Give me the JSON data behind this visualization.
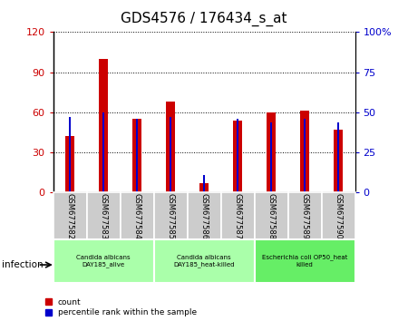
{
  "title": "GDS4576 / 176434_s_at",
  "samples": [
    "GSM677582",
    "GSM677583",
    "GSM677584",
    "GSM677585",
    "GSM677586",
    "GSM677587",
    "GSM677588",
    "GSM677589",
    "GSM677590"
  ],
  "counts": [
    42,
    100,
    55,
    68,
    7,
    54,
    60,
    61,
    47
  ],
  "percentile_ranks": [
    47,
    50,
    46,
    47,
    11,
    46,
    44,
    46,
    44
  ],
  "ylim_left": [
    0,
    120
  ],
  "ylim_right": [
    0,
    100
  ],
  "yticks_left": [
    0,
    30,
    60,
    90,
    120
  ],
  "yticks_right": [
    0,
    25,
    50,
    75,
    100
  ],
  "ytick_labels_left": [
    "0",
    "30",
    "60",
    "90",
    "120"
  ],
  "ytick_labels_right": [
    "0",
    "25",
    "50",
    "75",
    "100%"
  ],
  "bar_color_red": "#cc0000",
  "bar_color_blue": "#0000cc",
  "group_labels": [
    "Candida albicans\nDAY185_alive",
    "Candida albicans\nDAY185_heat-killed",
    "Escherichia coli OP50_heat\nkilled"
  ],
  "group_ranges": [
    [
      0,
      3
    ],
    [
      3,
      6
    ],
    [
      6,
      9
    ]
  ],
  "group_colors": [
    "#aaffaa",
    "#aaffaa",
    "#66ee66"
  ],
  "xlabel_label": "infection",
  "legend_count": "count",
  "legend_percentile": "percentile rank within the sample",
  "red_bar_width": 0.25,
  "blue_bar_width": 0.06,
  "tick_bg_color": "#cccccc"
}
